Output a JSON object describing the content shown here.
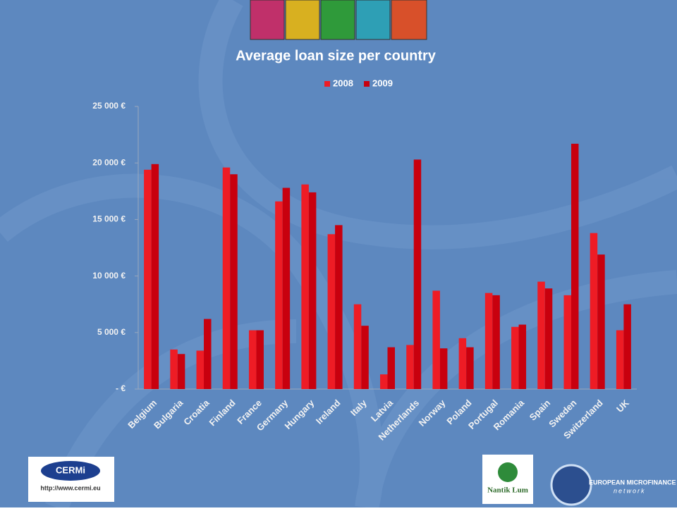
{
  "chart_data": {
    "type": "bar",
    "title": "Average loan size per country",
    "categories": [
      "Belgium",
      "Bulgaria",
      "Croatia",
      "Finland",
      "France",
      "Germany",
      "Hungary",
      "Ireland",
      "Italy",
      "Latvia",
      "Netherlands",
      "Norway",
      "Poland",
      "Portugal",
      "Romania",
      "Spain",
      "Sweden",
      "Switzerland",
      "UK"
    ],
    "series": [
      {
        "name": "2008",
        "color": "#ee1c25",
        "values": [
          19400,
          3500,
          3400,
          19600,
          5200,
          16600,
          18100,
          13700,
          7500,
          1300,
          3900,
          8700,
          4500,
          8500,
          5500,
          9500,
          8300,
          13800,
          5200
        ]
      },
      {
        "name": "2009",
        "color": "#c8000e",
        "values": [
          19900,
          3100,
          6200,
          19000,
          5200,
          17800,
          17400,
          14500,
          5600,
          3700,
          20300,
          3600,
          3700,
          8300,
          5700,
          8900,
          21700,
          11900,
          7500
        ]
      }
    ],
    "ylim": [
      0,
      25000
    ],
    "yticks": [
      {
        "value": 0,
        "label": "-   €"
      },
      {
        "value": 5000,
        "label": "5 000 €"
      },
      {
        "value": 10000,
        "label": "10 000 €"
      },
      {
        "value": 15000,
        "label": "15 000 €"
      },
      {
        "value": 20000,
        "label": "20 000 €"
      },
      {
        "value": 25000,
        "label": "25 000 €"
      }
    ],
    "legend": "top"
  },
  "footer": {
    "cermi": "CERMi",
    "cermi_url": "http://www.cermi.eu",
    "nantik": "Nantik Lum",
    "emn": "EUROPEAN MICROFINANCE",
    "emn_sub": "network"
  }
}
